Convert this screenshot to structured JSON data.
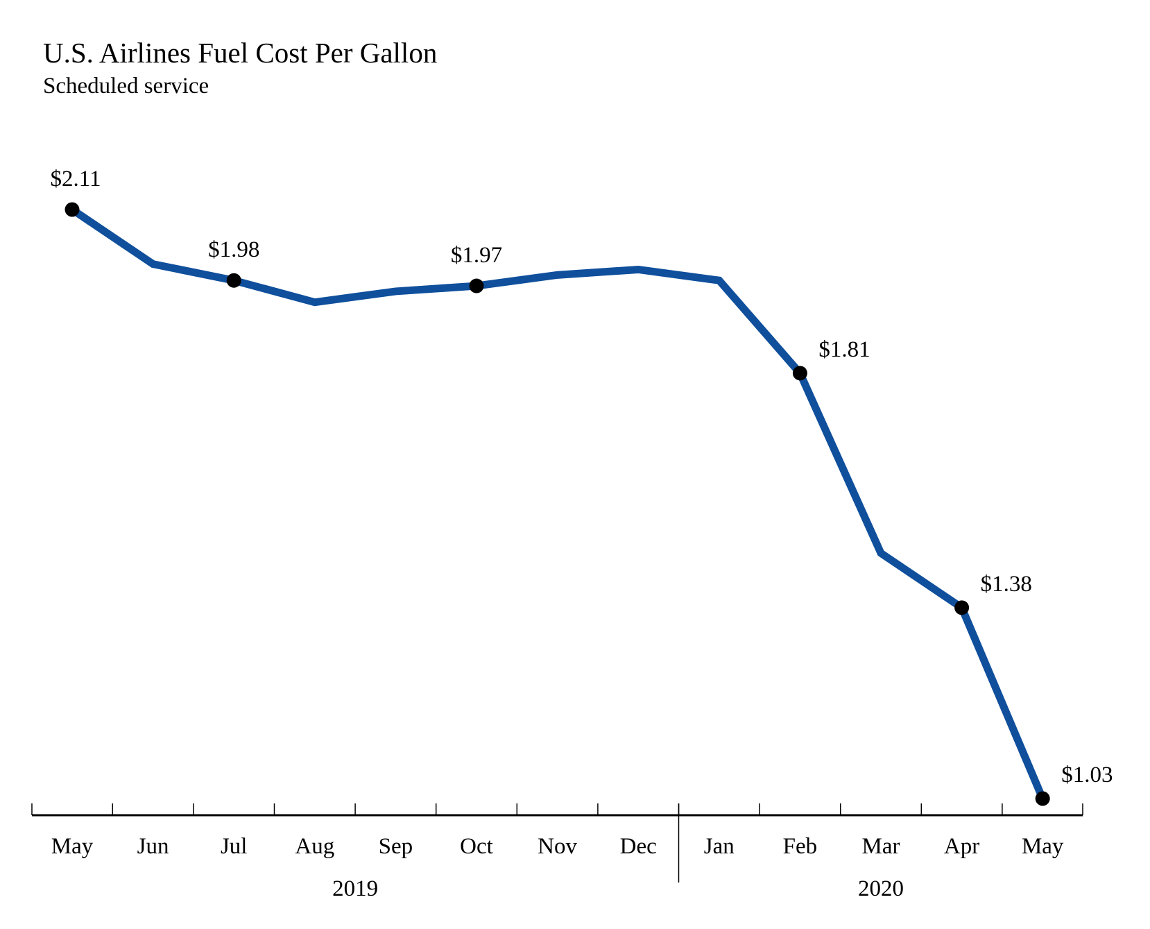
{
  "chart_data": {
    "type": "line",
    "title": "U.S. Airlines Fuel Cost Per Gallon",
    "subtitle": "Scheduled service",
    "xlabel": "",
    "ylabel": "",
    "categories": [
      "May",
      "Jun",
      "Jul",
      "Aug",
      "Sep",
      "Oct",
      "Nov",
      "Dec",
      "Jan",
      "Feb",
      "Mar",
      "Apr",
      "May"
    ],
    "year_groups": [
      {
        "label": "2019",
        "start": 0,
        "end": 7
      },
      {
        "label": "2020",
        "start": 8,
        "end": 12
      }
    ],
    "series": [
      {
        "name": "Fuel cost per gallon",
        "color": "#0f4f9c",
        "values": [
          2.11,
          2.01,
          1.98,
          1.94,
          1.96,
          1.97,
          1.99,
          2.0,
          1.98,
          1.81,
          1.48,
          1.38,
          1.03
        ]
      }
    ],
    "labeled_points": [
      {
        "index": 0,
        "label": "$2.11",
        "position": "above"
      },
      {
        "index": 2,
        "label": "$1.98",
        "position": "above"
      },
      {
        "index": 5,
        "label": "$1.97",
        "position": "above"
      },
      {
        "index": 9,
        "label": "$1.81",
        "position": "above-right"
      },
      {
        "index": 11,
        "label": "$1.38",
        "position": "above-right"
      },
      {
        "index": 12,
        "label": "$1.03",
        "position": "above-right"
      }
    ],
    "ylim": [
      1.03,
      2.11
    ],
    "grid": false,
    "legend": "none"
  }
}
